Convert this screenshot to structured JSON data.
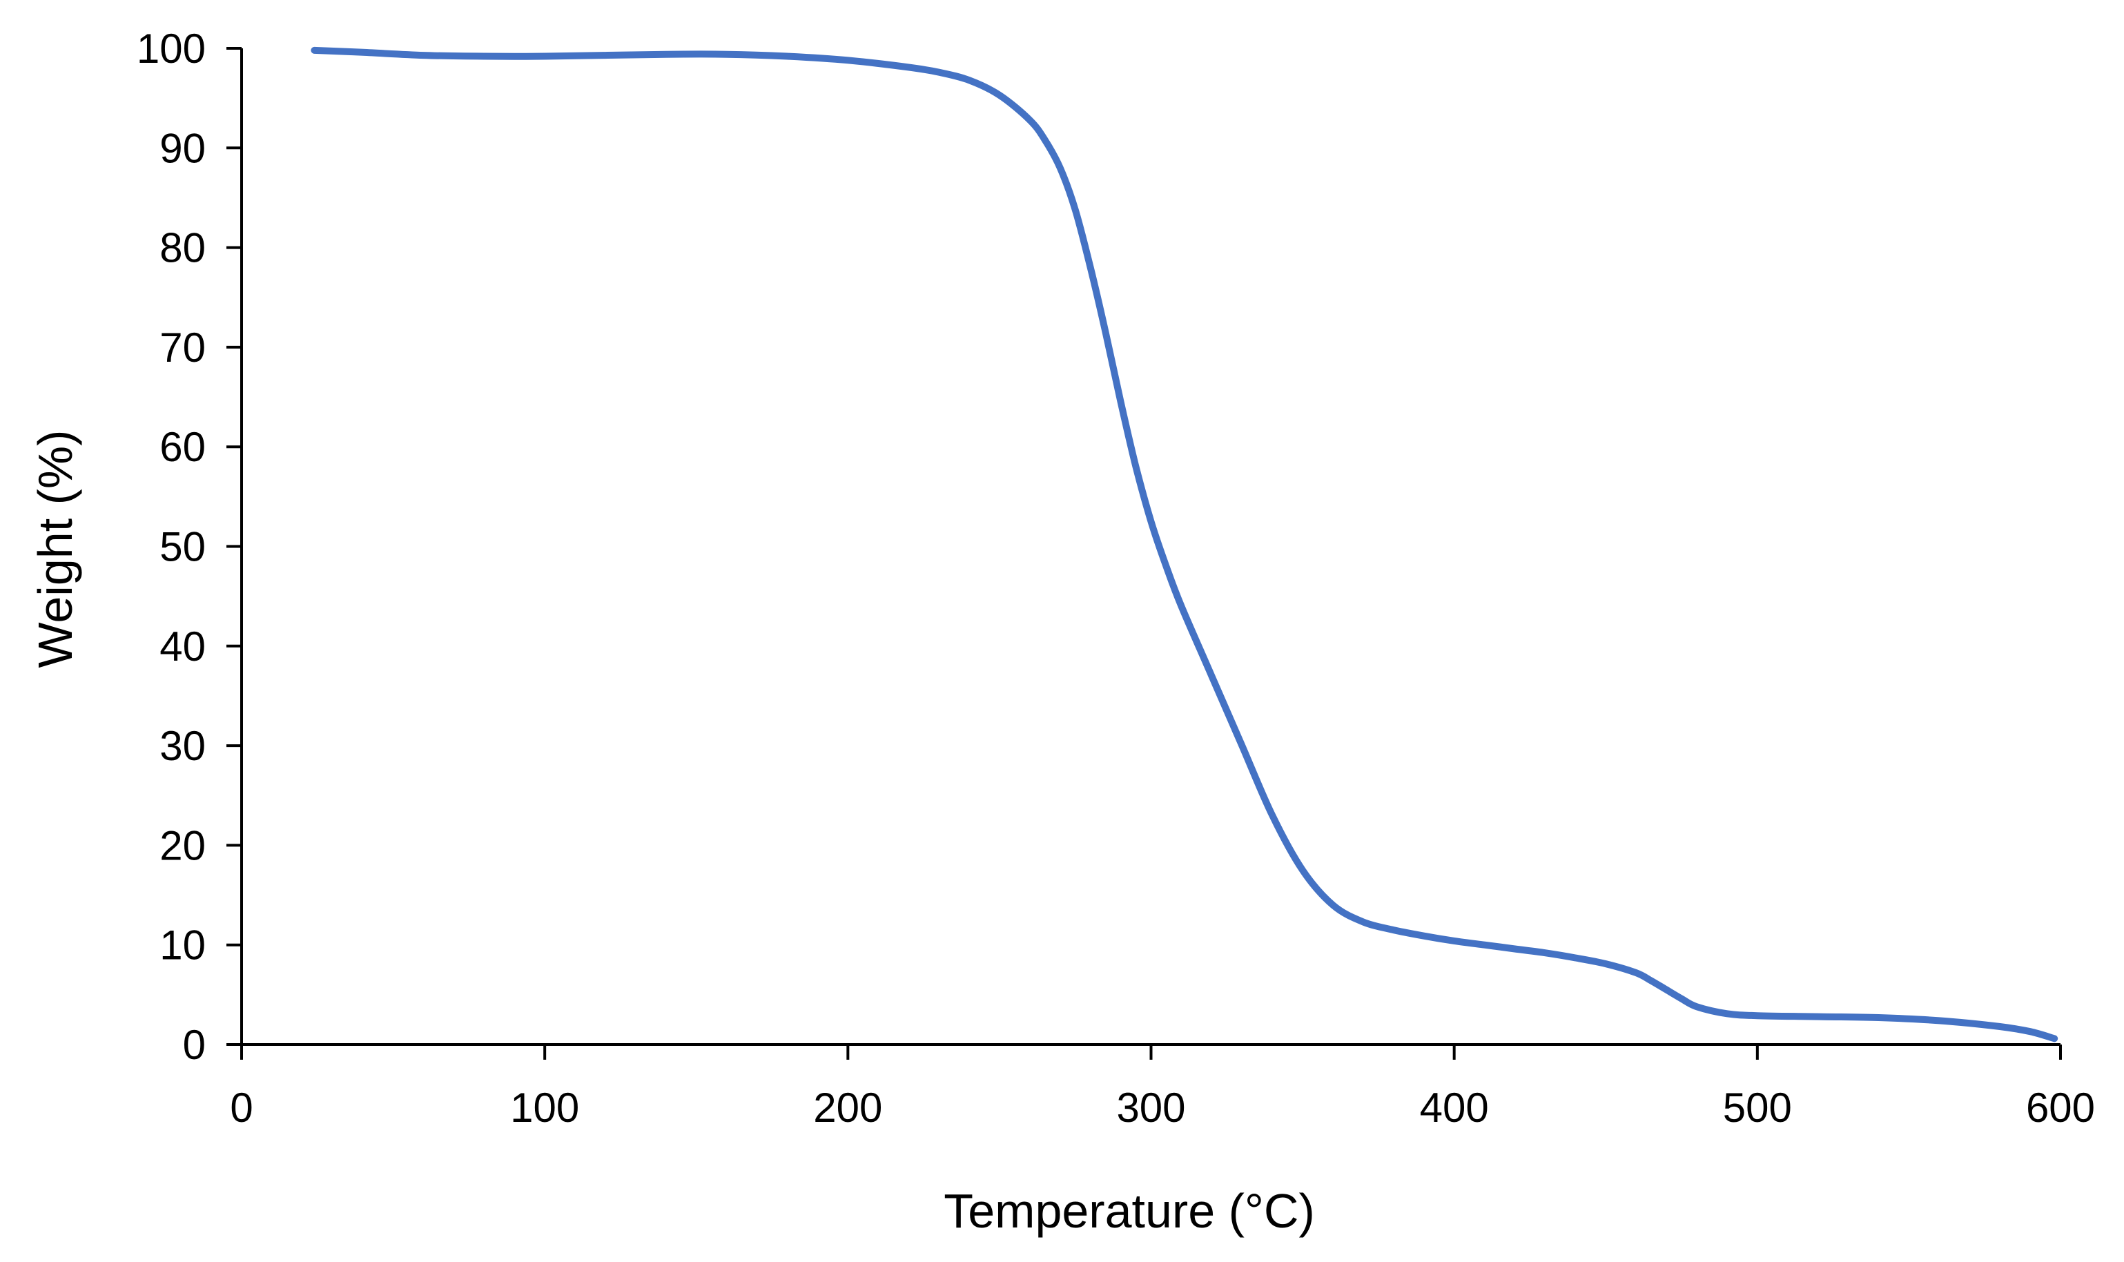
{
  "chart_data": {
    "type": "line",
    "title": "",
    "xlabel": "Temperature (°C)",
    "ylabel": "Weight (%)",
    "xlim": [
      0,
      600
    ],
    "ylim": [
      0,
      100
    ],
    "x_ticks": [
      0,
      100,
      200,
      300,
      400,
      500,
      600
    ],
    "y_ticks": [
      0,
      10,
      20,
      30,
      40,
      50,
      60,
      70,
      80,
      90,
      100
    ],
    "grid": false,
    "legend": "none",
    "series": [
      {
        "color": "#4472C4",
        "points": [
          [
            24,
            99.8
          ],
          [
            40,
            99.6
          ],
          [
            60,
            99.3
          ],
          [
            80,
            99.2
          ],
          [
            100,
            99.2
          ],
          [
            120,
            99.3
          ],
          [
            140,
            99.4
          ],
          [
            160,
            99.4
          ],
          [
            180,
            99.2
          ],
          [
            200,
            98.8
          ],
          [
            220,
            98.1
          ],
          [
            230,
            97.6
          ],
          [
            240,
            96.8
          ],
          [
            250,
            95.3
          ],
          [
            260,
            92.8
          ],
          [
            265,
            90.8
          ],
          [
            270,
            88.0
          ],
          [
            275,
            83.8
          ],
          [
            280,
            78.0
          ],
          [
            285,
            71.5
          ],
          [
            290,
            64.5
          ],
          [
            295,
            58.0
          ],
          [
            300,
            52.5
          ],
          [
            305,
            48.0
          ],
          [
            310,
            44.0
          ],
          [
            320,
            37.0
          ],
          [
            330,
            30.0
          ],
          [
            340,
            23.0
          ],
          [
            350,
            17.5
          ],
          [
            360,
            14.0
          ],
          [
            370,
            12.3
          ],
          [
            380,
            11.5
          ],
          [
            390,
            10.9
          ],
          [
            400,
            10.4
          ],
          [
            410,
            10.0
          ],
          [
            420,
            9.6
          ],
          [
            430,
            9.2
          ],
          [
            440,
            8.7
          ],
          [
            450,
            8.1
          ],
          [
            460,
            7.2
          ],
          [
            465,
            6.4
          ],
          [
            470,
            5.5
          ],
          [
            475,
            4.6
          ],
          [
            480,
            3.8
          ],
          [
            490,
            3.1
          ],
          [
            500,
            2.9
          ],
          [
            520,
            2.8
          ],
          [
            540,
            2.7
          ],
          [
            560,
            2.4
          ],
          [
            580,
            1.8
          ],
          [
            590,
            1.3
          ],
          [
            598,
            0.6
          ]
        ]
      }
    ]
  }
}
